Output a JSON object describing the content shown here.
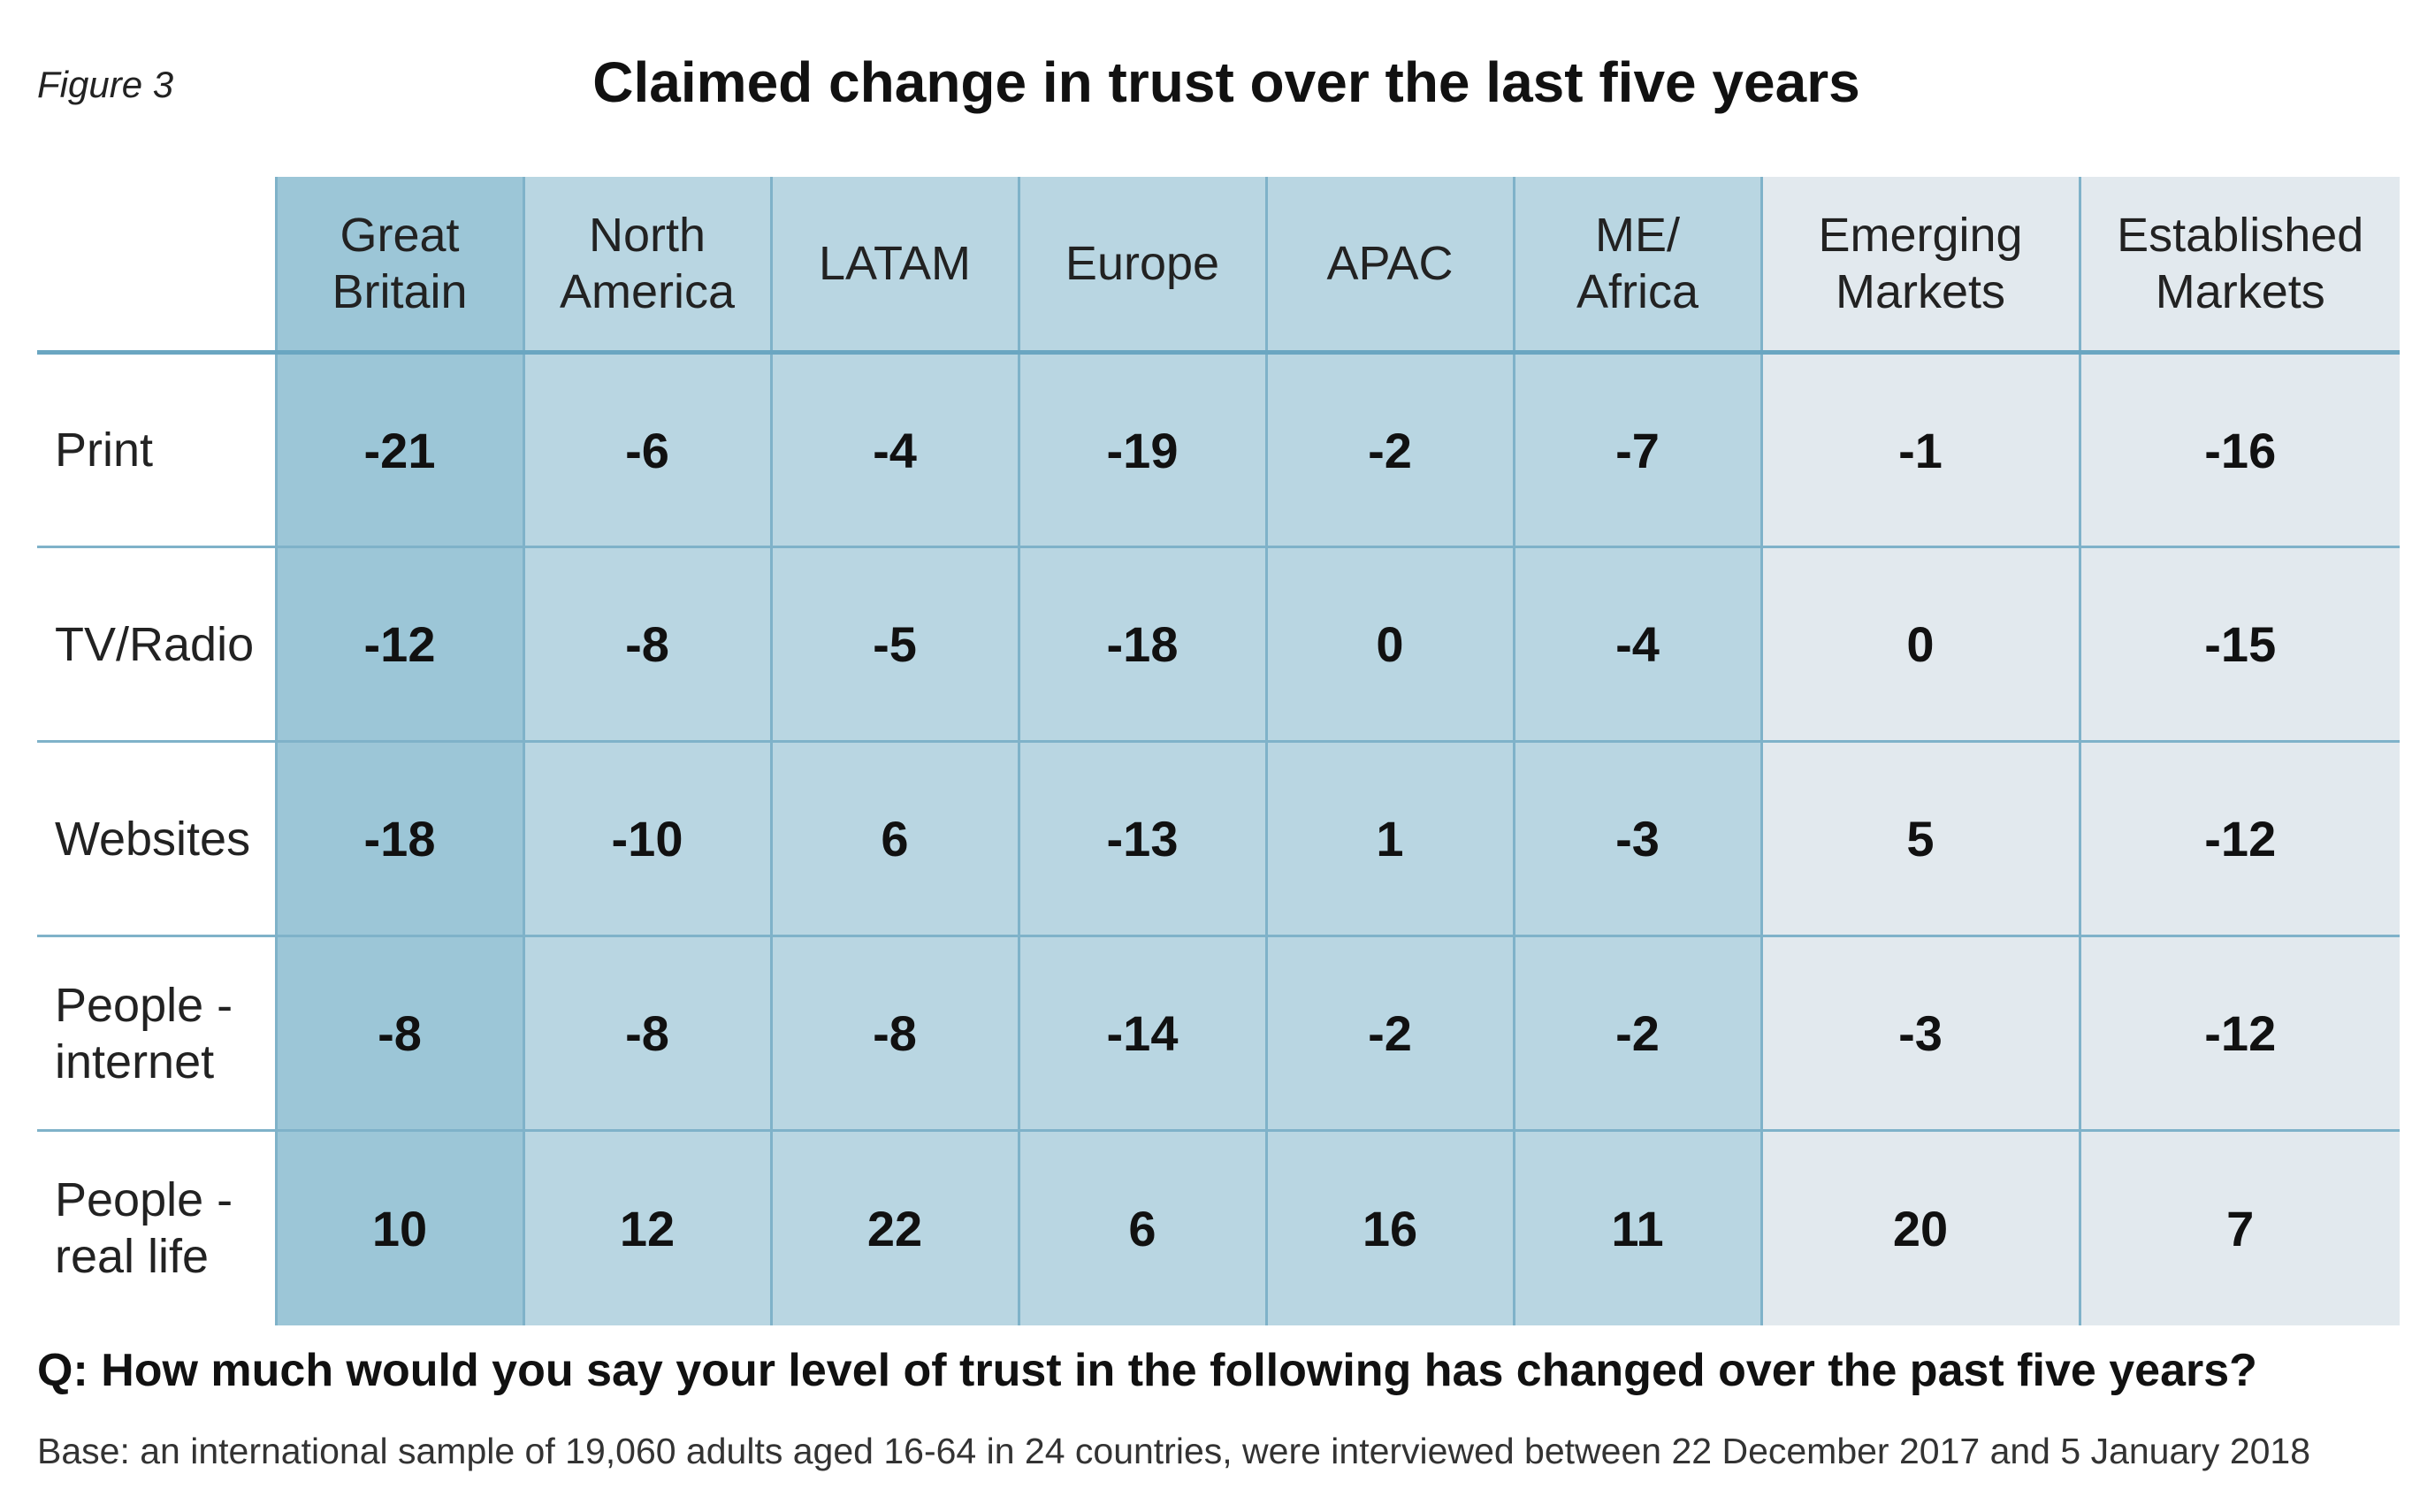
{
  "figure_label": "Figure 3",
  "chart_data": {
    "type": "table",
    "title": "Claimed change in trust over the last five years",
    "columns": [
      [
        "Great",
        "Britain"
      ],
      [
        "North",
        "America"
      ],
      [
        "LATAM"
      ],
      [
        "Europe"
      ],
      [
        "APAC"
      ],
      [
        "ME/",
        "Africa"
      ],
      [
        "Emerging",
        "Markets"
      ],
      [
        "Established",
        "Markets"
      ]
    ],
    "rows": [
      {
        "label": [
          "Print"
        ],
        "values": [
          -21,
          -6,
          -4,
          -19,
          -2,
          -7,
          -1,
          -16
        ]
      },
      {
        "label": [
          "TV/Radio"
        ],
        "values": [
          -12,
          -8,
          -5,
          -18,
          0,
          -4,
          0,
          -15
        ]
      },
      {
        "label": [
          "Websites"
        ],
        "values": [
          -18,
          -10,
          6,
          -13,
          1,
          -3,
          5,
          -12
        ]
      },
      {
        "label": [
          "People -",
          "internet"
        ],
        "values": [
          -8,
          -8,
          -8,
          -14,
          -2,
          -2,
          -3,
          -12
        ]
      },
      {
        "label": [
          "People -",
          "real life"
        ],
        "values": [
          10,
          12,
          22,
          6,
          16,
          11,
          20,
          7
        ]
      }
    ],
    "column_colors": [
      "#9cc6d7",
      "#b9d6e2",
      "#b9d6e2",
      "#b9d6e2",
      "#b9d6e2",
      "#b9d6e2",
      "#e2e9ee",
      "#e2e9ee"
    ]
  },
  "question": "Q: How much would you say your level of trust in the following has changed over the past five years?",
  "base_note": "Base: an international sample of 19,060 adults aged 16-64 in 24 countries, were interviewed between 22 December 2017 and 5 January 2018"
}
